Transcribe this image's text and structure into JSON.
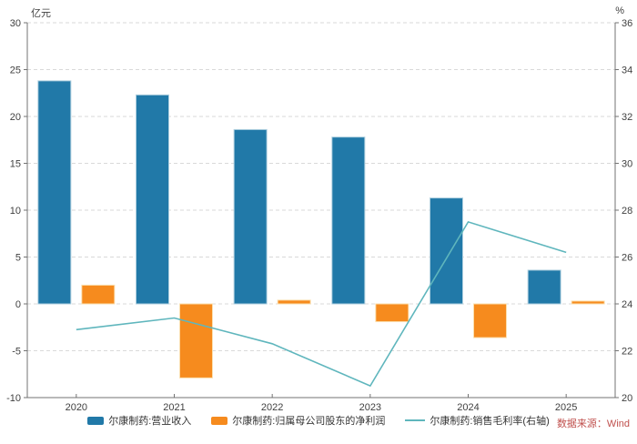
{
  "units": {
    "left": "亿元",
    "right": "%"
  },
  "source": "数据来源：Wind",
  "colors": {
    "revenue": "#2179a8",
    "revenue_border": "#aecfdf",
    "profit": "#f68b1e",
    "profit_border": "#fbdfae",
    "margin": "#5fb6bd",
    "source_text": "#c0504d",
    "axis_line": "#737373",
    "axis_text": "#404040",
    "grid": "#d9d9d9"
  },
  "legend": [
    {
      "label": "尔康制药:营业收入"
    },
    {
      "label": "尔康制药:归属母公司股东的净利润"
    },
    {
      "label": "尔康制药:销售毛利率(右轴)"
    }
  ],
  "chart_data": {
    "type": "bar",
    "subtype": "grouped bars with overlay line on secondary axis",
    "categories": [
      "2020",
      "2021",
      "2022",
      "2023",
      "2024",
      "2025"
    ],
    "series": [
      {
        "key": "revenue",
        "name": "尔康制药:营业收入",
        "type": "bar",
        "axis": "left",
        "values": [
          23.8,
          22.3,
          18.6,
          17.8,
          11.3,
          3.6
        ]
      },
      {
        "key": "profit",
        "name": "尔康制药:归属母公司股东的净利润",
        "type": "bar",
        "axis": "left",
        "values": [
          2.0,
          -7.9,
          0.4,
          -1.9,
          -3.6,
          0.3
        ]
      },
      {
        "key": "margin",
        "name": "尔康制药:销售毛利率(右轴)",
        "type": "line",
        "axis": "right",
        "values": [
          22.9,
          23.4,
          22.3,
          20.5,
          27.5,
          26.2
        ]
      }
    ],
    "left_axis": {
      "label": "亿元",
      "min": -10,
      "max": 30,
      "step": 5
    },
    "right_axis": {
      "label": "%",
      "min": 20,
      "max": 36,
      "step": 2
    },
    "grid": "horizontal dashed",
    "legend_position": "bottom center"
  }
}
